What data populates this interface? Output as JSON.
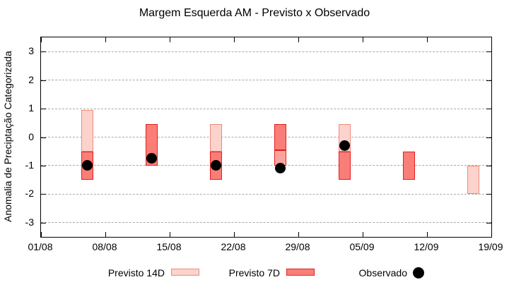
{
  "title": "Margem Esquerda AM - Previsto x Observado",
  "ylabel": "Anomalia de Preciptação Categorizada",
  "legend": {
    "position": "bottom",
    "items": [
      {
        "label": "Previsto 14D",
        "swatch": "previsto_14d"
      },
      {
        "label": "Previsto 7D",
        "swatch": "previsto_7d"
      },
      {
        "label": "Observado",
        "swatch": "observado_dot"
      }
    ]
  },
  "colors": {
    "background": "#ffffff",
    "axis": "#000000",
    "grid": "#a9a9a9",
    "observado": "#000000"
  },
  "chart_data": {
    "type": "bar",
    "subtype": "range-bars-with-scatter",
    "title": "Margem Esquerda AM - Previsto x Observado",
    "xlabel": "",
    "ylabel": "Anomalia de Preciptação Categorizada",
    "ylim": [
      -3.5,
      3.5
    ],
    "grid": "dashed-horizontal",
    "y_ticks": [
      3,
      2,
      1,
      0,
      -1,
      -2,
      -3
    ],
    "x_axis": {
      "total_days": 49,
      "ticks": [
        {
          "label": "01/08",
          "day": 0
        },
        {
          "label": "08/08",
          "day": 7
        },
        {
          "label": "15/08",
          "day": 14
        },
        {
          "label": "22/08",
          "day": 21
        },
        {
          "label": "29/08",
          "day": 28
        },
        {
          "label": "05/09",
          "day": 35
        },
        {
          "label": "12/09",
          "day": 42
        },
        {
          "label": "19/09",
          "day": 49
        }
      ]
    },
    "styles": {
      "previsto_14d": {
        "fill": "#fbd3cc",
        "border": "#f0897c"
      },
      "previsto_7d": {
        "fill": "#f97e77",
        "border": "#e81d1d"
      },
      "previsto_7d_overlap": {
        "fill": "#fba49d",
        "border": "#e81d1d"
      }
    },
    "bars": [
      {
        "date": "06/08",
        "day": 5,
        "segments": [
          {
            "series": "previsto_14d",
            "low": -0.5,
            "high": 0.95
          },
          {
            "series": "previsto_7d",
            "low": -1.5,
            "high": -0.5
          }
        ],
        "observado": -1.0
      },
      {
        "date": "13/08",
        "day": 12,
        "segments": [
          {
            "series": "previsto_7d",
            "low": -1.0,
            "high": 0.45
          }
        ],
        "observado": -0.75
      },
      {
        "date": "20/08",
        "day": 19,
        "segments": [
          {
            "series": "previsto_14d",
            "low": -0.5,
            "high": 0.45
          },
          {
            "series": "previsto_7d",
            "low": -1.5,
            "high": -0.5
          }
        ],
        "observado": -1.0
      },
      {
        "date": "27/08",
        "day": 26,
        "segments": [
          {
            "series": "previsto_7d_overlap",
            "low": -1.0,
            "high": -0.45
          },
          {
            "series": "previsto_7d",
            "low": -0.45,
            "high": 0.45
          }
        ],
        "observado": -1.1
      },
      {
        "date": "03/09",
        "day": 33,
        "segments": [
          {
            "series": "previsto_14d",
            "low": -0.5,
            "high": 0.45
          },
          {
            "series": "previsto_7d",
            "low": -1.5,
            "high": -0.5
          }
        ],
        "observado": -0.3
      },
      {
        "date": "10/09",
        "day": 40,
        "segments": [
          {
            "series": "previsto_7d",
            "low": -1.5,
            "high": -0.5
          }
        ],
        "observado": null
      },
      {
        "date": "17/09",
        "day": 47,
        "segments": [
          {
            "series": "previsto_14d",
            "low": -2.0,
            "high": -1.0
          }
        ],
        "observado": null
      }
    ]
  }
}
